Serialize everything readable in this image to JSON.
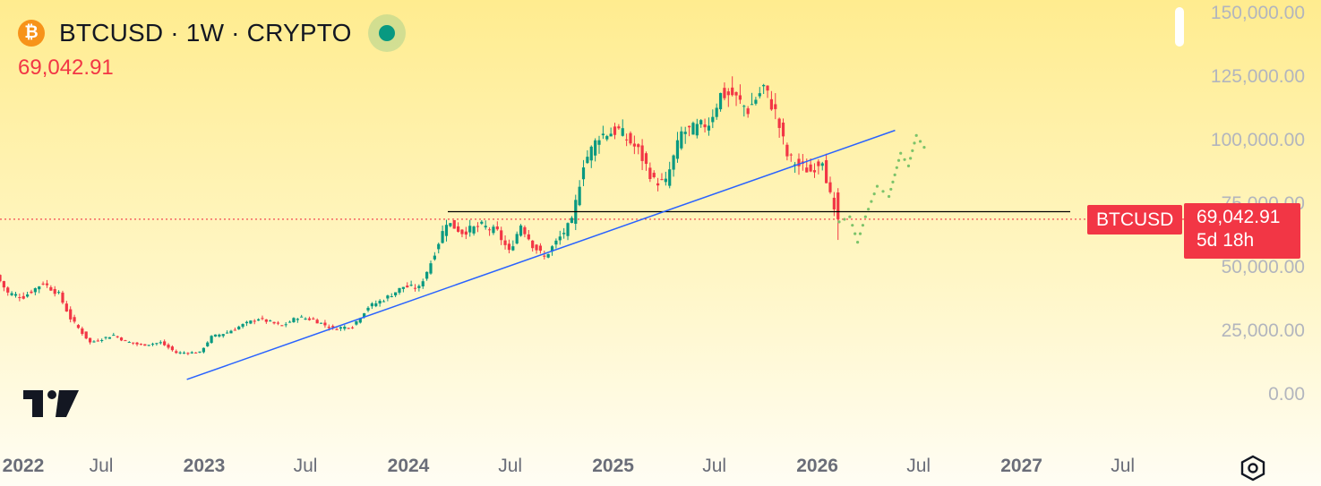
{
  "header": {
    "coin_icon": "bitcoin-icon",
    "coin_glyph": "₿",
    "symbol_line": "BTCUSD · 1W · CRYPTO",
    "last_price": "69,042.91"
  },
  "price_tag": {
    "symbol": "BTCUSD",
    "price": "69,042.91",
    "countdown": "5d 18h"
  },
  "colors": {
    "up": "#089981",
    "down": "#f23645",
    "trendline": "#2962ff",
    "level": "#000000",
    "projection": "#7cc36a",
    "price_line": "#f23645"
  },
  "chart_data": {
    "type": "candlestick",
    "interval": "1W",
    "symbol": "BTCUSD",
    "y_ticks": [
      "150,000.00",
      "125,000.00",
      "100,000.00",
      "75,000.00",
      "50,000.00",
      "25,000.00",
      "0.00"
    ],
    "ylim": [
      0,
      150000
    ],
    "x_ticks": [
      "2022",
      "Jul",
      "2023",
      "Jul",
      "2024",
      "Jul",
      "2025",
      "Jul",
      "2026",
      "Jul",
      "2027",
      "Jul"
    ],
    "x_tick_dates": [
      "2022-01-01",
      "2022-07-01",
      "2023-01-01",
      "2023-07-01",
      "2024-01-01",
      "2024-07-01",
      "2025-01-01",
      "2025-07-01",
      "2026-01-01",
      "2026-07-01",
      "2027-01-01",
      "2027-07-01"
    ],
    "price_path": [
      [
        "2022-01-01",
        47000
      ],
      [
        "2022-01-22",
        40000
      ],
      [
        "2022-02-19",
        38500
      ],
      [
        "2022-03-26",
        44000
      ],
      [
        "2022-04-23",
        39500
      ],
      [
        "2022-05-14",
        30000
      ],
      [
        "2022-06-18",
        20500
      ],
      [
        "2022-07-30",
        23500
      ],
      [
        "2022-08-20",
        21000
      ],
      [
        "2022-09-17",
        19500
      ],
      [
        "2022-10-22",
        20500
      ],
      [
        "2022-11-19",
        16500
      ],
      [
        "2022-12-31",
        16600
      ],
      [
        "2023-01-21",
        22800
      ],
      [
        "2023-02-18",
        24500
      ],
      [
        "2023-03-18",
        27500
      ],
      [
        "2023-04-15",
        30000
      ],
      [
        "2023-05-27",
        27000
      ],
      [
        "2023-06-24",
        30500
      ],
      [
        "2023-07-22",
        29500
      ],
      [
        "2023-08-26",
        26000
      ],
      [
        "2023-09-30",
        27000
      ],
      [
        "2023-10-28",
        34500
      ],
      [
        "2023-11-25",
        37500
      ],
      [
        "2023-12-30",
        42500
      ],
      [
        "2024-01-27",
        42000
      ],
      [
        "2024-02-17",
        52000
      ],
      [
        "2024-03-16",
        68000
      ],
      [
        "2024-04-13",
        64000
      ],
      [
        "2024-05-18",
        66500
      ],
      [
        "2024-06-15",
        64000
      ],
      [
        "2024-07-06",
        56000
      ],
      [
        "2024-07-27",
        67000
      ],
      [
        "2024-08-17",
        59000
      ],
      [
        "2024-09-07",
        54000
      ],
      [
        "2024-10-05",
        62000
      ],
      [
        "2024-10-26",
        68000
      ],
      [
        "2024-11-16",
        91000
      ],
      [
        "2024-12-14",
        102000
      ],
      [
        "2025-01-18",
        104000
      ],
      [
        "2025-02-22",
        96000
      ],
      [
        "2025-03-22",
        84000
      ],
      [
        "2025-04-12",
        83500
      ],
      [
        "2025-05-10",
        103000
      ],
      [
        "2025-06-07",
        105000
      ],
      [
        "2025-06-28",
        107000
      ],
      [
        "2025-07-19",
        118000
      ],
      [
        "2025-08-09",
        118000
      ],
      [
        "2025-09-06",
        112000
      ],
      [
        "2025-10-04",
        121000
      ],
      [
        "2025-10-25",
        111000
      ],
      [
        "2025-11-15",
        94000
      ],
      [
        "2025-12-06",
        90000
      ],
      [
        "2025-12-27",
        88000
      ],
      [
        "2026-01-17",
        93000
      ],
      [
        "2026-01-31",
        78000
      ],
      [
        "2026-02-09",
        69042.91
      ]
    ],
    "last": 69042.91,
    "annotations": {
      "horizontal_level": 72000,
      "trendline": [
        [
          "2022-12-01",
          6000
        ],
        [
          "2026-05-20",
          104000
        ]
      ],
      "projection_path": [
        [
          "2026-02-09",
          68000
        ],
        [
          "2026-02-28",
          70000
        ],
        [
          "2026-03-14",
          60000
        ],
        [
          "2026-03-28",
          70000
        ],
        [
          "2026-04-18",
          82000
        ],
        [
          "2026-05-09",
          78000
        ],
        [
          "2026-05-30",
          95000
        ],
        [
          "2026-06-13",
          90000
        ],
        [
          "2026-06-27",
          102000
        ],
        [
          "2026-07-18",
          95000
        ]
      ]
    }
  },
  "icons": {
    "logo": "tradingview-logo-icon",
    "settings": "settings-hexagon-icon"
  }
}
